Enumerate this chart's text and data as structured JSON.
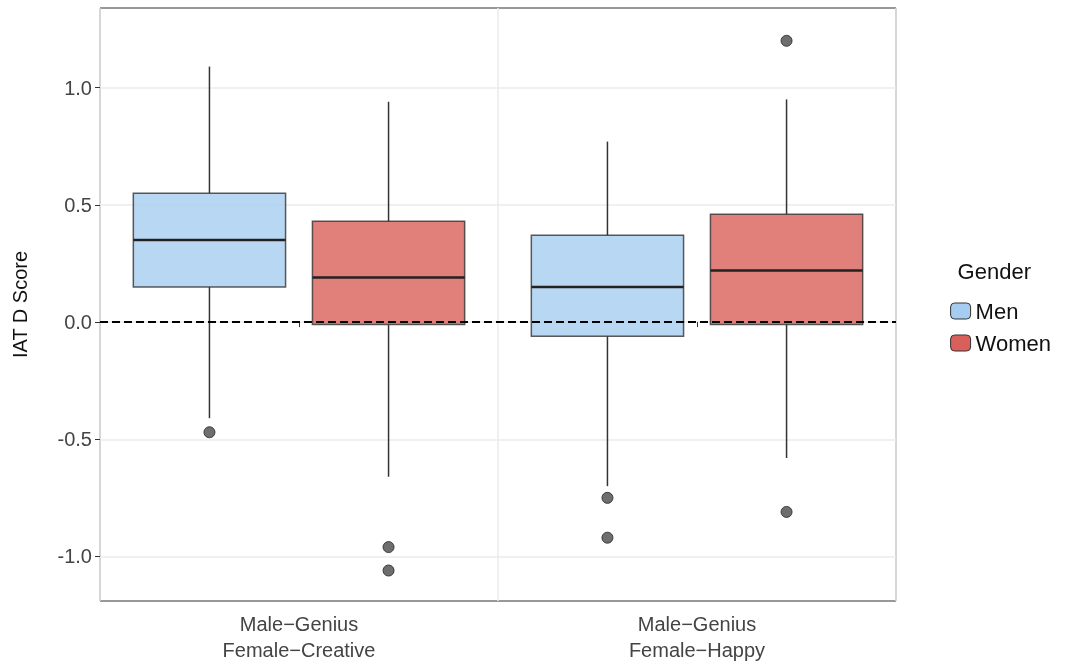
{
  "chart_data": {
    "type": "box",
    "ylabel": "IAT D Score",
    "legend_title": "Gender",
    "legend": "right",
    "categories": [
      "Male−Genius\nFemale−Creative",
      "Male−Genius\nFemale−Happy"
    ],
    "series": [
      {
        "name": "Men",
        "color": "#a6cdf0",
        "boxes": [
          {
            "low": -0.41,
            "q1": 0.15,
            "median": 0.35,
            "q3": 0.55,
            "high": 1.09,
            "outliers": [
              -0.47
            ]
          },
          {
            "low": -0.7,
            "q1": -0.06,
            "median": 0.15,
            "q3": 0.37,
            "high": 0.77,
            "outliers": [
              -0.75,
              -0.92
            ]
          }
        ]
      },
      {
        "name": "Women",
        "color": "#d9605a",
        "boxes": [
          {
            "low": -0.66,
            "q1": -0.01,
            "median": 0.19,
            "q3": 0.43,
            "high": 0.94,
            "outliers": [
              -0.96,
              -1.06
            ]
          },
          {
            "low": -0.58,
            "q1": -0.01,
            "median": 0.22,
            "q3": 0.46,
            "high": 0.95,
            "outliers": [
              1.2,
              -0.81
            ]
          }
        ]
      }
    ],
    "ylim": [
      -1.19,
      1.34
    ],
    "yticks": [
      {
        "value": -1,
        "label": "-1.0"
      },
      {
        "value": -0.5,
        "label": "-0.5"
      },
      {
        "value": 0,
        "label": "0.0"
      },
      {
        "value": 0.5,
        "label": "0.5"
      },
      {
        "value": 1,
        "label": "1.0"
      }
    ],
    "grid": true,
    "ref_lines": [
      {
        "axis": "y",
        "value": 0,
        "line_style": "dashed",
        "color": "#000000"
      }
    ]
  }
}
